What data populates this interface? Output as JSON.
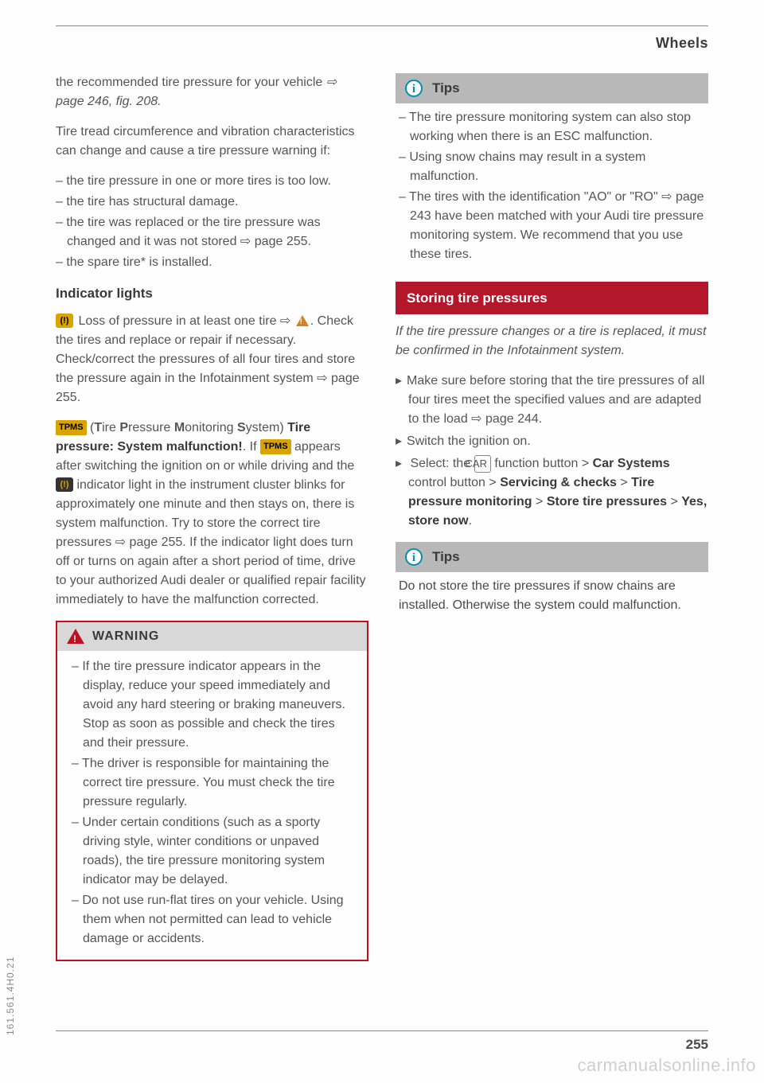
{
  "page": {
    "section_title": "Wheels",
    "page_number": "255",
    "side_code": "161.561.4H0.21",
    "watermark": "carmanualsonline.info"
  },
  "left": {
    "intro1a": "the recommended tire pressure for your vehicle",
    "intro1b": "⇨ page 246, fig. 208.",
    "intro2": "Tire tread circumference and vibration characteristics can change and cause a tire pressure warning if:",
    "causes": [
      "– the tire pressure in one or more tires is too low.",
      "– the tire has structural damage.",
      "– the tire was replaced or the tire pressure was changed and it was not stored ⇨ page 255.",
      "– the spare tire* is installed."
    ],
    "indicator_heading": "Indicator lights",
    "ind_para1_a": " Loss of pressure in at least one tire ⇨ ",
    "ind_para1_b": ". Check the tires and replace or repair if necessary. Check/correct the pressures of all four tires and store the pressure again in the Infotainment system ⇨ page 255.",
    "ind_para2_a": " (",
    "ind_para2_tpms_full": "Tire Pressure Monitoring System",
    "ind_para2_b": ") ",
    "ind_para2_bold": "Tire pressure: System malfunction!",
    "ind_para2_c": ". If ",
    "ind_para2_d": " appears after switching the ignition on or while driving and the ",
    "ind_para2_e": " indicator light in the instrument cluster blinks for approximately one minute and then stays on, there is system malfunction. Try to store the correct tire pressures ⇨ page 255. If the indicator light does turn off or turns on again after a short period of time, drive to your authorized Audi dealer or qualified repair facility immediately to have the malfunction corrected.",
    "warning_label": "WARNING",
    "warnings": [
      "– If the tire pressure indicator appears in the display, reduce your speed immediately and avoid any hard steering or braking maneuvers. Stop as soon as possible and check the tires and their pressure.",
      "– The driver is responsible for maintaining the correct tire pressure. You must check the tire pressure regularly.",
      "– Under certain conditions (such as a sporty driving style, winter conditions or unpaved roads), the tire pressure monitoring system indicator may be delayed.",
      "– Do not use run-flat tires on your vehicle. Using them when not permitted can lead to vehicle damage or accidents."
    ]
  },
  "right": {
    "tips1_label": "Tips",
    "tips1_items": [
      "– The tire pressure monitoring system can also stop working when there is an ESC malfunction.",
      "– Using snow chains may result in a system malfunction.",
      "– The tires with the identification \"AO\" or \"RO\" ⇨ page 243 have been matched with your Audi tire pressure monitoring system. We recommend that you use these tires."
    ],
    "redbar": "Storing tire pressures",
    "italic_lead": "If the tire pressure changes or a tire is replaced, it must be confirmed in the Infotainment system.",
    "proc1": "Make sure before storing that the tire pressures of all four tires meet the specified values and are adapted to the load ⇨ page 244.",
    "proc2": "Switch the ignition on.",
    "proc3_a": "Select: the ",
    "proc3_car": "CAR",
    "proc3_b": " function button > ",
    "proc3_cs": "Car Systems",
    "proc3_c": " control button > ",
    "proc3_sc": "Servicing & checks",
    "proc3_d": " > ",
    "proc3_tpm": "Tire pressure monitoring",
    "proc3_e": " > ",
    "proc3_stp": "Store tire pressures",
    "proc3_f": " > ",
    "proc3_ysn": "Yes, store now",
    "proc3_g": ".",
    "tips2_label": "Tips",
    "tips2_body": "Do not store the tire pressures if snow chains are installed. Otherwise the system could malfunction."
  }
}
